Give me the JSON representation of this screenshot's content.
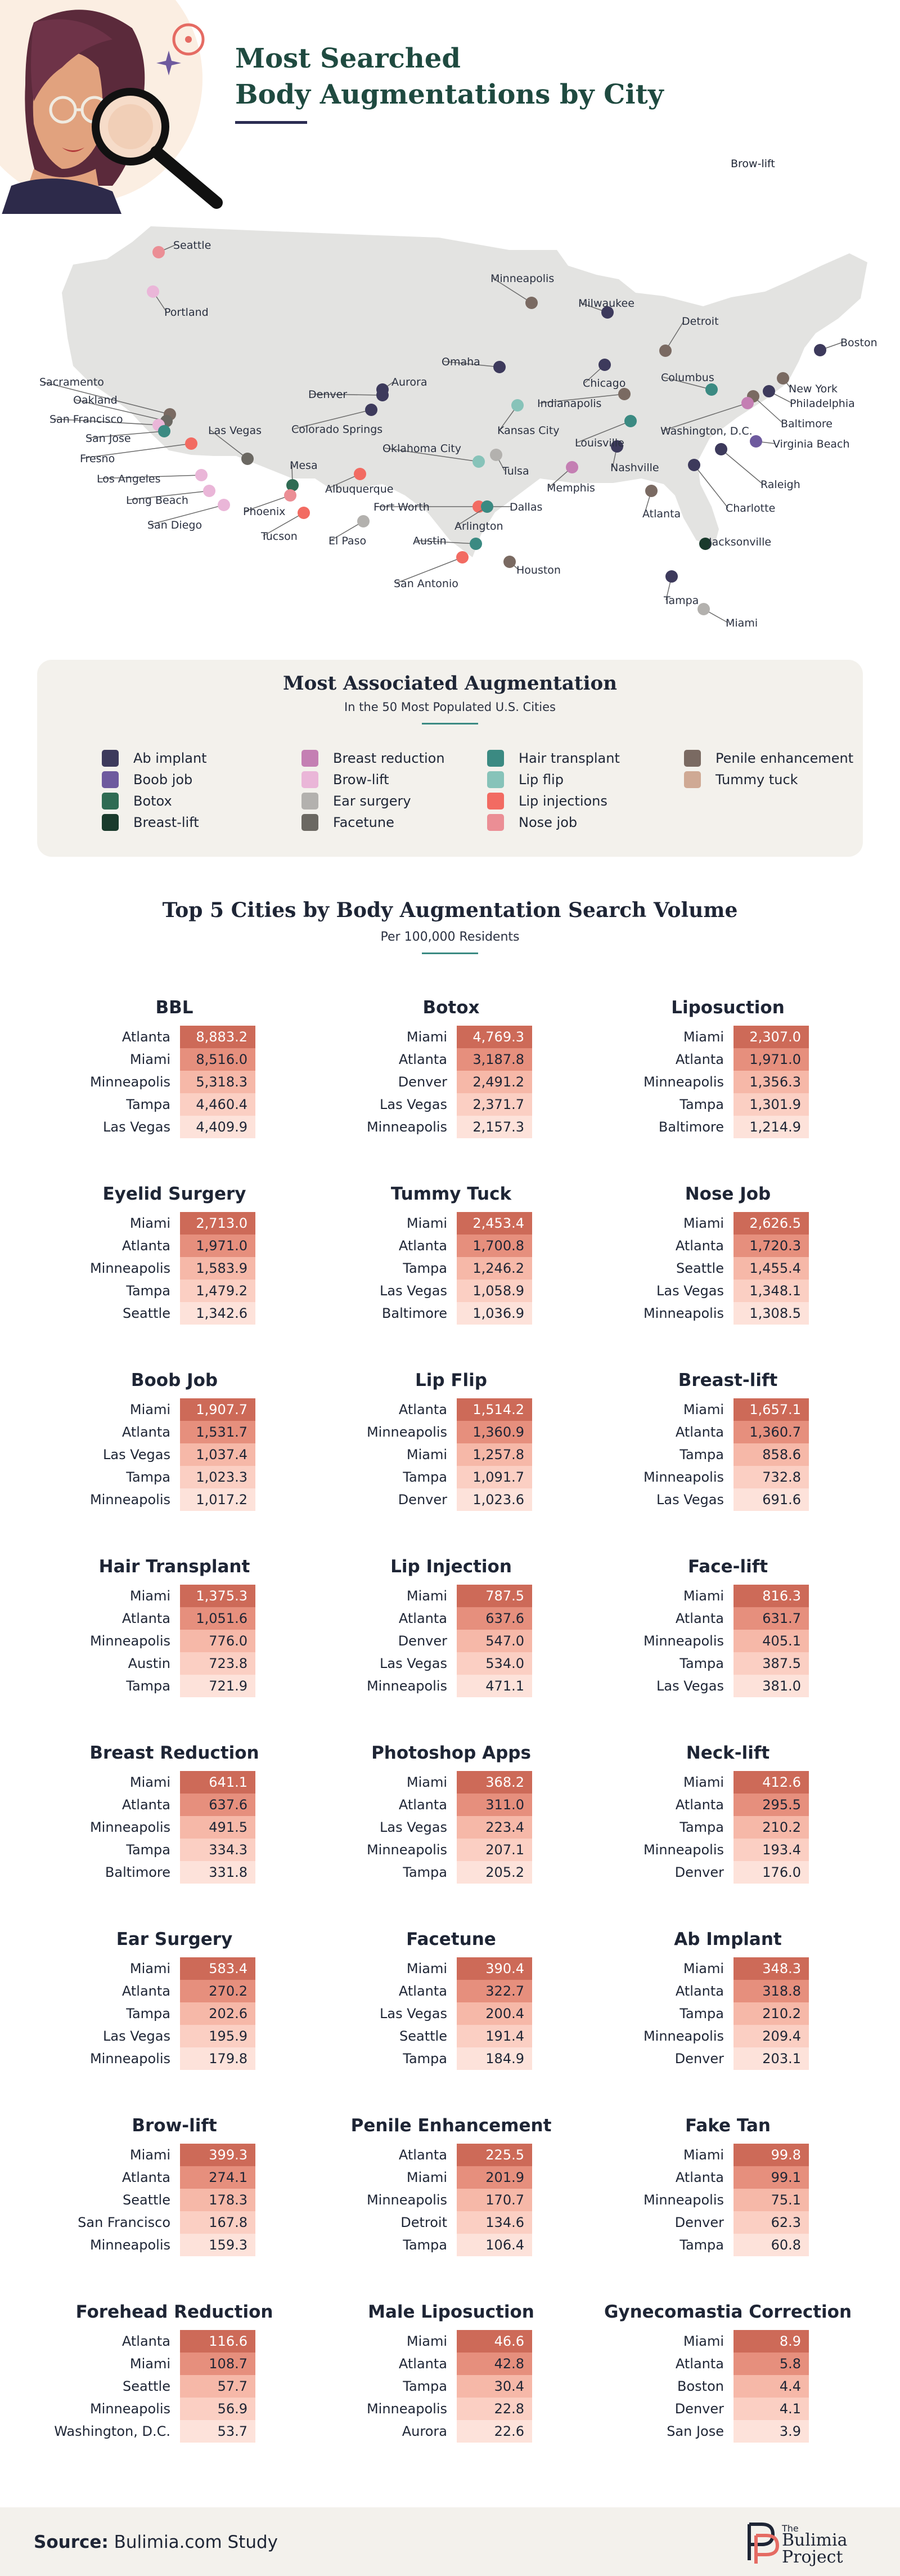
{
  "header": {
    "title_line1": "Most Searched",
    "title_line2": "Body Augmentations by City"
  },
  "map": {
    "browlift_tag": "Brow-lift",
    "cities": [
      {
        "name": "Seattle",
        "cat": "nose"
      },
      {
        "name": "Portland",
        "cat": "browlift"
      },
      {
        "name": "Minneapolis",
        "cat": "penile"
      },
      {
        "name": "Milwaukee",
        "cat": "abimplant"
      },
      {
        "name": "Detroit",
        "cat": "penile"
      },
      {
        "name": "Boston",
        "cat": "abimplant"
      },
      {
        "name": "Chicago",
        "cat": "abimplant"
      },
      {
        "name": "Omaha",
        "cat": "abimplant"
      },
      {
        "name": "Denver",
        "cat": "abimplant"
      },
      {
        "name": "Aurora",
        "cat": "abimplant"
      },
      {
        "name": "Colorado Springs",
        "cat": "abimplant"
      },
      {
        "name": "Indianapolis",
        "cat": "penile"
      },
      {
        "name": "Columbus",
        "cat": "hairtransplant"
      },
      {
        "name": "New York",
        "cat": "penile"
      },
      {
        "name": "Philadelphia",
        "cat": "abimplant"
      },
      {
        "name": "Baltimore",
        "cat": "penile"
      },
      {
        "name": "Washington, D.C.",
        "cat": "breastreduction"
      },
      {
        "name": "Virginia Beach",
        "cat": "boobjob"
      },
      {
        "name": "Sacramento",
        "cat": "penile"
      },
      {
        "name": "Oakland",
        "cat": "facetune"
      },
      {
        "name": "San Francisco",
        "cat": "browlift"
      },
      {
        "name": "San Jose",
        "cat": "hairtransplant"
      },
      {
        "name": "Fresno",
        "cat": "lipinjections"
      },
      {
        "name": "Las Vegas",
        "cat": "facetune"
      },
      {
        "name": "Kansas City",
        "cat": "lipflip"
      },
      {
        "name": "Louisville",
        "cat": "hairtransplant"
      },
      {
        "name": "Nashville",
        "cat": "abimplant"
      },
      {
        "name": "Raleigh",
        "cat": "abimplant"
      },
      {
        "name": "Charlotte",
        "cat": "abimplant"
      },
      {
        "name": "Los Angeles",
        "cat": "browlift"
      },
      {
        "name": "Long Beach",
        "cat": "browlift"
      },
      {
        "name": "San Diego",
        "cat": "browlift"
      },
      {
        "name": "Mesa",
        "cat": "botox"
      },
      {
        "name": "Phoenix",
        "cat": "nose"
      },
      {
        "name": "Tucson",
        "cat": "lipinjections"
      },
      {
        "name": "Albuquerque",
        "cat": "lipinjections"
      },
      {
        "name": "El Paso",
        "cat": "earsurgery"
      },
      {
        "name": "Oklahoma City",
        "cat": "lipflip"
      },
      {
        "name": "Tulsa",
        "cat": "earsurgery"
      },
      {
        "name": "Memphis",
        "cat": "breastreduction"
      },
      {
        "name": "Fort Worth",
        "cat": "lipinjections"
      },
      {
        "name": "Dallas",
        "cat": "nose"
      },
      {
        "name": "Arlington",
        "cat": "hairtransplant"
      },
      {
        "name": "Austin",
        "cat": "hairtransplant"
      },
      {
        "name": "San Antonio",
        "cat": "lipinjections"
      },
      {
        "name": "Houston",
        "cat": "penile"
      },
      {
        "name": "Atlanta",
        "cat": "penile"
      },
      {
        "name": "Jacksonville",
        "cat": "breastlift"
      },
      {
        "name": "Tampa",
        "cat": "abimplant"
      },
      {
        "name": "Miami",
        "cat": "earsurgery"
      }
    ]
  },
  "legend": {
    "title": "Most Associated Augmentation",
    "subtitle": "In the 50 Most Populated U.S. Cities",
    "items": [
      {
        "key": "abimplant",
        "label": "Ab implant",
        "color": "#3d3a5c"
      },
      {
        "key": "boobjob",
        "label": "Boob job",
        "color": "#6e5a9e"
      },
      {
        "key": "botox",
        "label": "Botox",
        "color": "#2f6b53"
      },
      {
        "key": "breastlift",
        "label": "Breast-lift",
        "color": "#193a2c"
      },
      {
        "key": "breastreduction",
        "label": "Breast reduction",
        "color": "#c47fb3"
      },
      {
        "key": "browlift",
        "label": "Brow-lift",
        "color": "#eab6d8"
      },
      {
        "key": "earsurgery",
        "label": "Ear surgery",
        "color": "#b3b1ae"
      },
      {
        "key": "facetune",
        "label": "Facetune",
        "color": "#6b6862"
      },
      {
        "key": "hairtransplant",
        "label": "Hair transplant",
        "color": "#3b8a82"
      },
      {
        "key": "lipflip",
        "label": "Lip flip",
        "color": "#87c3b9"
      },
      {
        "key": "lipinjections",
        "label": "Lip injections",
        "color": "#f26b62"
      },
      {
        "key": "nose",
        "label": "Nose job",
        "color": "#eb8e95"
      },
      {
        "key": "penile",
        "label": "Penile enhancement",
        "color": "#7a6a62"
      },
      {
        "key": "tummy",
        "label": "Tummy tuck",
        "color": "#cfa994"
      }
    ]
  },
  "ranking": {
    "title": "Top 5 Cities by Body Augmentation Search Volume",
    "subtitle": "Per 100,000 Residents",
    "cards": [
      {
        "title": "BBL",
        "rows": [
          [
            "Atlanta",
            "8,883.2"
          ],
          [
            "Miami",
            "8,516.0"
          ],
          [
            "Minneapolis",
            "5,318.3"
          ],
          [
            "Tampa",
            "4,460.4"
          ],
          [
            "Las Vegas",
            "4,409.9"
          ]
        ]
      },
      {
        "title": "Botox",
        "rows": [
          [
            "Miami",
            "4,769.3"
          ],
          [
            "Atlanta",
            "3,187.8"
          ],
          [
            "Denver",
            "2,491.2"
          ],
          [
            "Las Vegas",
            "2,371.7"
          ],
          [
            "Minneapolis",
            "2,157.3"
          ]
        ]
      },
      {
        "title": "Liposuction",
        "rows": [
          [
            "Miami",
            "2,307.0"
          ],
          [
            "Atlanta",
            "1,971.0"
          ],
          [
            "Minneapolis",
            "1,356.3"
          ],
          [
            "Tampa",
            "1,301.9"
          ],
          [
            "Baltimore",
            "1,214.9"
          ]
        ]
      },
      {
        "title": "Eyelid Surgery",
        "rows": [
          [
            "Miami",
            "2,713.0"
          ],
          [
            "Atlanta",
            "1,971.0"
          ],
          [
            "Minneapolis",
            "1,583.9"
          ],
          [
            "Tampa",
            "1,479.2"
          ],
          [
            "Seattle",
            "1,342.6"
          ]
        ]
      },
      {
        "title": "Tummy Tuck",
        "rows": [
          [
            "Miami",
            "2,453.4"
          ],
          [
            "Atlanta",
            "1,700.8"
          ],
          [
            "Tampa",
            "1,246.2"
          ],
          [
            "Las Vegas",
            "1,058.9"
          ],
          [
            "Baltimore",
            "1,036.9"
          ]
        ]
      },
      {
        "title": "Nose Job",
        "rows": [
          [
            "Miami",
            "2,626.5"
          ],
          [
            "Atlanta",
            "1,720.3"
          ],
          [
            "Seattle",
            "1,455.4"
          ],
          [
            "Las Vegas",
            "1,348.1"
          ],
          [
            "Minneapolis",
            "1,308.5"
          ]
        ]
      },
      {
        "title": "Boob Job",
        "rows": [
          [
            "Miami",
            "1,907.7"
          ],
          [
            "Atlanta",
            "1,531.7"
          ],
          [
            "Las Vegas",
            "1,037.4"
          ],
          [
            "Tampa",
            "1,023.3"
          ],
          [
            "Minneapolis",
            "1,017.2"
          ]
        ]
      },
      {
        "title": "Lip Flip",
        "rows": [
          [
            "Atlanta",
            "1,514.2"
          ],
          [
            "Minneapolis",
            "1,360.9"
          ],
          [
            "Miami",
            "1,257.8"
          ],
          [
            "Tampa",
            "1,091.7"
          ],
          [
            "Denver",
            "1,023.6"
          ]
        ]
      },
      {
        "title": "Breast-lift",
        "rows": [
          [
            "Miami",
            "1,657.1"
          ],
          [
            "Atlanta",
            "1,360.7"
          ],
          [
            "Tampa",
            "858.6"
          ],
          [
            "Minneapolis",
            "732.8"
          ],
          [
            "Las Vegas",
            "691.6"
          ]
        ]
      },
      {
        "title": "Hair Transplant",
        "rows": [
          [
            "Miami",
            "1,375.3"
          ],
          [
            "Atlanta",
            "1,051.6"
          ],
          [
            "Minneapolis",
            "776.0"
          ],
          [
            "Austin",
            "723.8"
          ],
          [
            "Tampa",
            "721.9"
          ]
        ]
      },
      {
        "title": "Lip Injection",
        "rows": [
          [
            "Miami",
            "787.5"
          ],
          [
            "Atlanta",
            "637.6"
          ],
          [
            "Denver",
            "547.0"
          ],
          [
            "Las Vegas",
            "534.0"
          ],
          [
            "Minneapolis",
            "471.1"
          ]
        ]
      },
      {
        "title": "Face-lift",
        "rows": [
          [
            "Miami",
            "816.3"
          ],
          [
            "Atlanta",
            "631.7"
          ],
          [
            "Minneapolis",
            "405.1"
          ],
          [
            "Tampa",
            "387.5"
          ],
          [
            "Las Vegas",
            "381.0"
          ]
        ]
      },
      {
        "title": "Breast Reduction",
        "rows": [
          [
            "Miami",
            "641.1"
          ],
          [
            "Atlanta",
            "637.6"
          ],
          [
            "Minneapolis",
            "491.5"
          ],
          [
            "Tampa",
            "334.3"
          ],
          [
            "Baltimore",
            "331.8"
          ]
        ]
      },
      {
        "title": "Photoshop Apps",
        "rows": [
          [
            "Miami",
            "368.2"
          ],
          [
            "Atlanta",
            "311.0"
          ],
          [
            "Las Vegas",
            "223.4"
          ],
          [
            "Minneapolis",
            "207.1"
          ],
          [
            "Tampa",
            "205.2"
          ]
        ]
      },
      {
        "title": "Neck-lift",
        "rows": [
          [
            "Miami",
            "412.6"
          ],
          [
            "Atlanta",
            "295.5"
          ],
          [
            "Tampa",
            "210.2"
          ],
          [
            "Minneapolis",
            "193.4"
          ],
          [
            "Denver",
            "176.0"
          ]
        ]
      },
      {
        "title": "Ear Surgery",
        "rows": [
          [
            "Miami",
            "583.4"
          ],
          [
            "Atlanta",
            "270.2"
          ],
          [
            "Tampa",
            "202.6"
          ],
          [
            "Las Vegas",
            "195.9"
          ],
          [
            "Minneapolis",
            "179.8"
          ]
        ]
      },
      {
        "title": "Facetune",
        "rows": [
          [
            "Miami",
            "390.4"
          ],
          [
            "Atlanta",
            "322.7"
          ],
          [
            "Las Vegas",
            "200.4"
          ],
          [
            "Seattle",
            "191.4"
          ],
          [
            "Tampa",
            "184.9"
          ]
        ]
      },
      {
        "title": "Ab Implant",
        "rows": [
          [
            "Miami",
            "348.3"
          ],
          [
            "Atlanta",
            "318.8"
          ],
          [
            "Tampa",
            "210.2"
          ],
          [
            "Minneapolis",
            "209.4"
          ],
          [
            "Denver",
            "203.1"
          ]
        ]
      },
      {
        "title": "Brow-lift",
        "rows": [
          [
            "Miami",
            "399.3"
          ],
          [
            "Atlanta",
            "274.1"
          ],
          [
            "Seattle",
            "178.3"
          ],
          [
            "San Francisco",
            "167.8"
          ],
          [
            "Minneapolis",
            "159.3"
          ]
        ]
      },
      {
        "title": "Penile Enhancement",
        "rows": [
          [
            "Atlanta",
            "225.5"
          ],
          [
            "Miami",
            "201.9"
          ],
          [
            "Minneapolis",
            "170.7"
          ],
          [
            "Detroit",
            "134.6"
          ],
          [
            "Tampa",
            "106.4"
          ]
        ]
      },
      {
        "title": "Fake Tan",
        "rows": [
          [
            "Miami",
            "99.8"
          ],
          [
            "Atlanta",
            "99.1"
          ],
          [
            "Minneapolis",
            "75.1"
          ],
          [
            "Denver",
            "62.3"
          ],
          [
            "Tampa",
            "60.8"
          ]
        ]
      },
      {
        "title": "Forehead Reduction",
        "rows": [
          [
            "Atlanta",
            "116.6"
          ],
          [
            "Miami",
            "108.7"
          ],
          [
            "Seattle",
            "57.7"
          ],
          [
            "Minneapolis",
            "56.9"
          ],
          [
            "Washington, D.C.",
            "53.7"
          ]
        ]
      },
      {
        "title": "Male Liposuction",
        "rows": [
          [
            "Miami",
            "46.6"
          ],
          [
            "Atlanta",
            "42.8"
          ],
          [
            "Tampa",
            "30.4"
          ],
          [
            "Minneapolis",
            "22.8"
          ],
          [
            "Aurora",
            "22.6"
          ]
        ]
      },
      {
        "title": "Gynecomastia Correction",
        "rows": [
          [
            "Miami",
            "8.9"
          ],
          [
            "Atlanta",
            "5.8"
          ],
          [
            "Boston",
            "4.4"
          ],
          [
            "Denver",
            "4.1"
          ],
          [
            "San Jose",
            "3.9"
          ]
        ]
      }
    ]
  },
  "footer": {
    "source_label": "Source:",
    "source_text": "Bulimia.com Study",
    "logo_small": "The",
    "logo_line1": "Bulimia",
    "logo_line2": "Project"
  }
}
